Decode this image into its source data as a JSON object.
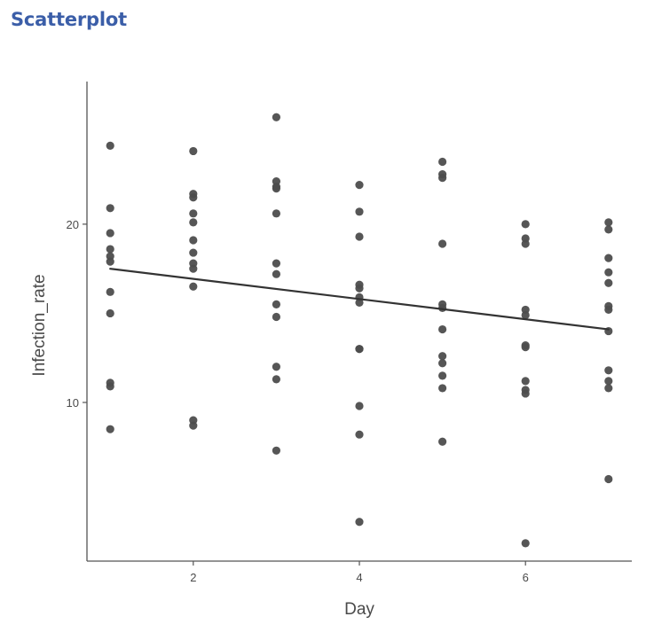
{
  "page": {
    "title": "Scatterplot"
  },
  "chart_data": {
    "type": "scatter",
    "title": "",
    "xlabel": "Day",
    "ylabel": "Infection_rate",
    "xlim": [
      0.72,
      7.28
    ],
    "ylim": [
      1.1,
      28.0
    ],
    "xticks": [
      2,
      4,
      6
    ],
    "yticks": [
      10,
      20
    ],
    "grid": false,
    "legend": "none",
    "point_color": "#4d4d4d",
    "line_color": "#333333",
    "axis_color": "#555555",
    "points": [
      {
        "x": 1,
        "y": 24.4
      },
      {
        "x": 1,
        "y": 20.9
      },
      {
        "x": 1,
        "y": 19.5
      },
      {
        "x": 1,
        "y": 18.6
      },
      {
        "x": 1,
        "y": 18.2
      },
      {
        "x": 1,
        "y": 17.9
      },
      {
        "x": 1,
        "y": 16.2
      },
      {
        "x": 1,
        "y": 15.0
      },
      {
        "x": 1,
        "y": 11.1
      },
      {
        "x": 1,
        "y": 10.9
      },
      {
        "x": 1,
        "y": 8.5
      },
      {
        "x": 2,
        "y": 24.1
      },
      {
        "x": 2,
        "y": 21.7
      },
      {
        "x": 2,
        "y": 21.5
      },
      {
        "x": 2,
        "y": 20.6
      },
      {
        "x": 2,
        "y": 20.1
      },
      {
        "x": 2,
        "y": 19.1
      },
      {
        "x": 2,
        "y": 18.4
      },
      {
        "x": 2,
        "y": 17.8
      },
      {
        "x": 2,
        "y": 17.5
      },
      {
        "x": 2,
        "y": 16.5
      },
      {
        "x": 2,
        "y": 9.0
      },
      {
        "x": 2,
        "y": 8.7
      },
      {
        "x": 3,
        "y": 26.0
      },
      {
        "x": 3,
        "y": 22.4
      },
      {
        "x": 3,
        "y": 22.1
      },
      {
        "x": 3,
        "y": 22.0
      },
      {
        "x": 3,
        "y": 20.6
      },
      {
        "x": 3,
        "y": 17.8
      },
      {
        "x": 3,
        "y": 17.2
      },
      {
        "x": 3,
        "y": 15.5
      },
      {
        "x": 3,
        "y": 14.8
      },
      {
        "x": 3,
        "y": 12.0
      },
      {
        "x": 3,
        "y": 11.3
      },
      {
        "x": 3,
        "y": 7.3
      },
      {
        "x": 4,
        "y": 22.2
      },
      {
        "x": 4,
        "y": 20.7
      },
      {
        "x": 4,
        "y": 19.3
      },
      {
        "x": 4,
        "y": 16.6
      },
      {
        "x": 4,
        "y": 16.4
      },
      {
        "x": 4,
        "y": 15.9
      },
      {
        "x": 4,
        "y": 15.6
      },
      {
        "x": 4,
        "y": 13.0
      },
      {
        "x": 4,
        "y": 13.0
      },
      {
        "x": 4,
        "y": 9.8
      },
      {
        "x": 4,
        "y": 8.2
      },
      {
        "x": 4,
        "y": 3.3
      },
      {
        "x": 5,
        "y": 23.5
      },
      {
        "x": 5,
        "y": 22.8
      },
      {
        "x": 5,
        "y": 22.6
      },
      {
        "x": 5,
        "y": 18.9
      },
      {
        "x": 5,
        "y": 15.5
      },
      {
        "x": 5,
        "y": 15.3
      },
      {
        "x": 5,
        "y": 14.1
      },
      {
        "x": 5,
        "y": 12.6
      },
      {
        "x": 5,
        "y": 12.2
      },
      {
        "x": 5,
        "y": 11.5
      },
      {
        "x": 5,
        "y": 10.8
      },
      {
        "x": 5,
        "y": 7.8
      },
      {
        "x": 6,
        "y": 20.0
      },
      {
        "x": 6,
        "y": 19.2
      },
      {
        "x": 6,
        "y": 18.9
      },
      {
        "x": 6,
        "y": 15.2
      },
      {
        "x": 6,
        "y": 14.9
      },
      {
        "x": 6,
        "y": 13.2
      },
      {
        "x": 6,
        "y": 13.1
      },
      {
        "x": 6,
        "y": 11.2
      },
      {
        "x": 6,
        "y": 10.7
      },
      {
        "x": 6,
        "y": 10.5
      },
      {
        "x": 6,
        "y": 2.1
      },
      {
        "x": 7,
        "y": 20.1
      },
      {
        "x": 7,
        "y": 19.7
      },
      {
        "x": 7,
        "y": 18.1
      },
      {
        "x": 7,
        "y": 17.3
      },
      {
        "x": 7,
        "y": 16.7
      },
      {
        "x": 7,
        "y": 15.4
      },
      {
        "x": 7,
        "y": 15.2
      },
      {
        "x": 7,
        "y": 14.0
      },
      {
        "x": 7,
        "y": 11.8
      },
      {
        "x": 7,
        "y": 11.2
      },
      {
        "x": 7,
        "y": 10.8
      },
      {
        "x": 7,
        "y": 5.7
      }
    ],
    "trend_line": {
      "x": [
        1,
        7
      ],
      "y": [
        17.5,
        14.1
      ]
    }
  }
}
